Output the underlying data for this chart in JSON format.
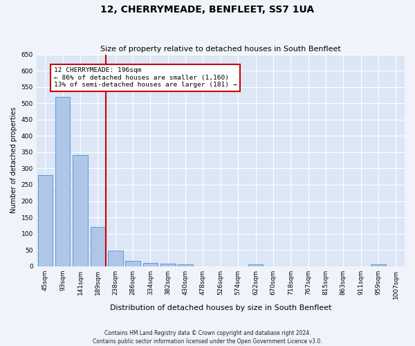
{
  "title": "12, CHERRYMEADE, BENFLEET, SS7 1UA",
  "subtitle": "Size of property relative to detached houses in South Benfleet",
  "xlabel": "Distribution of detached houses by size in South Benfleet",
  "ylabel": "Number of detached properties",
  "footnote": "Contains HM Land Registry data © Crown copyright and database right 2024.\nContains public sector information licensed under the Open Government Licence v3.0.",
  "bin_labels": [
    "45sqm",
    "93sqm",
    "141sqm",
    "189sqm",
    "238sqm",
    "286sqm",
    "334sqm",
    "382sqm",
    "430sqm",
    "478sqm",
    "526sqm",
    "574sqm",
    "622sqm",
    "670sqm",
    "718sqm",
    "767sqm",
    "815sqm",
    "863sqm",
    "911sqm",
    "959sqm",
    "1007sqm"
  ],
  "bar_values": [
    280,
    520,
    342,
    120,
    48,
    17,
    10,
    8,
    5,
    0,
    0,
    0,
    5,
    0,
    0,
    0,
    0,
    0,
    0,
    5,
    0
  ],
  "bar_color": "#aec6e8",
  "bar_edge_color": "#5b9bd5",
  "marker_label": "12 CHERRYMEADE: 196sqm",
  "annotation_line1": "← 86% of detached houses are smaller (1,160)",
  "annotation_line2": "13% of semi-detached houses are larger (181) →",
  "annotation_box_color": "#ffffff",
  "annotation_box_edge": "#cc0000",
  "marker_line_color": "#cc0000",
  "ylim": [
    0,
    650
  ],
  "yticks": [
    0,
    50,
    100,
    150,
    200,
    250,
    300,
    350,
    400,
    450,
    500,
    550,
    600,
    650
  ],
  "fig_bg": "#f0f4fa",
  "axes_bg": "#dce6f5",
  "grid_color": "#ffffff",
  "title_fontsize": 10,
  "subtitle_fontsize": 8,
  "ylabel_fontsize": 7,
  "xlabel_fontsize": 8,
  "tick_fontsize": 6.5,
  "footnote_fontsize": 5.5
}
